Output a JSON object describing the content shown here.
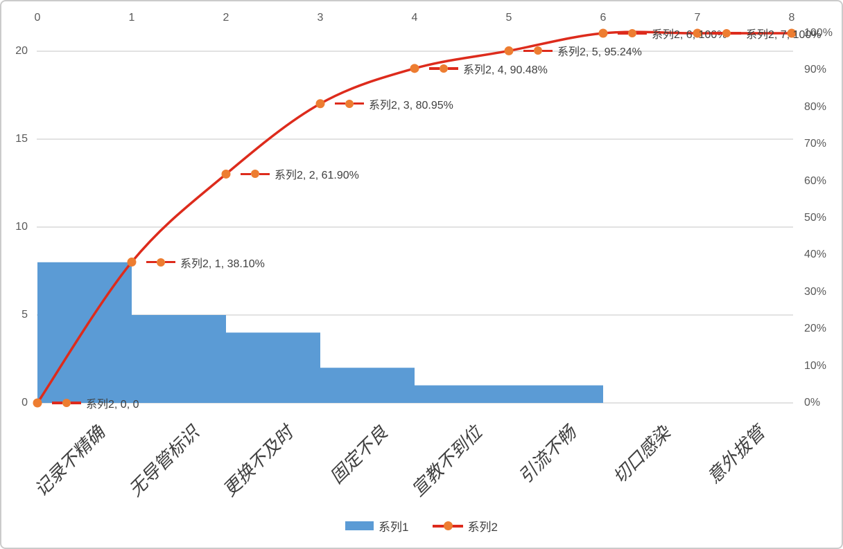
{
  "chart_data": {
    "type": "pareto",
    "title": "",
    "categories": [
      "记录不精确",
      "无导管标识",
      "更换不及时",
      "固定不良",
      "宣教不到位",
      "引流不畅",
      "切口感染",
      "意外拔管"
    ],
    "series": [
      {
        "name": "系列1",
        "type": "bar",
        "values": [
          8,
          5,
          4,
          2,
          1,
          1,
          0,
          0
        ],
        "color": "#5B9BD5"
      },
      {
        "name": "系列2",
        "type": "line",
        "smooth": true,
        "x": [
          0,
          1,
          2,
          3,
          4,
          5,
          6,
          7,
          8
        ],
        "cumulative_percent": [
          0,
          38.1,
          61.9,
          80.95,
          90.48,
          95.24,
          100,
          100,
          100
        ],
        "color": "#DD2B1C",
        "marker_color": "#ED7D31"
      }
    ],
    "data_labels": [
      "系列2, 0, 0",
      "系列2, 1, 38.10%",
      "系列2, 2, 61.90%",
      "系列2, 3, 80.95%",
      "系列2, 4, 90.48%",
      "系列2, 5, 95.24%",
      "系列2, 6, 100%",
      "系列2, 7, 100%"
    ],
    "axes": {
      "top": {
        "min": 0,
        "max": 8,
        "ticks": [
          "0",
          "1",
          "2",
          "3",
          "4",
          "5",
          "6",
          "7",
          "8"
        ]
      },
      "left": {
        "min": 0,
        "max": 20,
        "ticks": [
          "0",
          "5",
          "10",
          "15",
          "20"
        ],
        "tick_values": [
          0,
          5,
          10,
          15,
          20
        ]
      },
      "right": {
        "ticks": [
          "0%",
          "10%",
          "20%",
          "30%",
          "40%",
          "50%",
          "60%",
          "70%",
          "80%",
          "90%",
          "100%"
        ]
      }
    },
    "legend": {
      "position": "bottom",
      "items": [
        {
          "label": "系列1",
          "key": "bar-swatch"
        },
        {
          "label": "系列2",
          "key": "line-marker"
        }
      ]
    },
    "grid": "horizontal-major-only",
    "colors": {
      "gridline": "#D9D9D9",
      "axis_text": "#595959",
      "label_text": "#3F3F3F",
      "background": "#FFFFFF",
      "border": "#CBCBCB"
    }
  }
}
